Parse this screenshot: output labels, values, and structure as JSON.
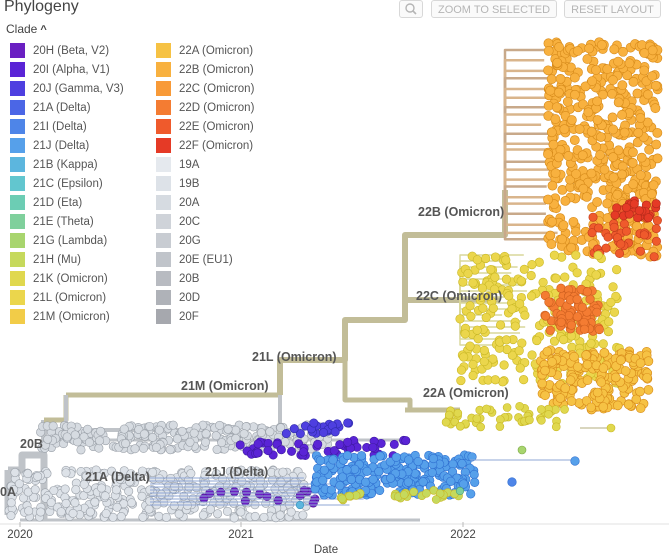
{
  "header": {
    "title": "Phylogeny",
    "zoom_icon": "magnifier-icon",
    "zoom_label": "ZOOM TO SELECTED",
    "reset_label": "RESET LAYOUT"
  },
  "legend": {
    "title": "Clade",
    "toggle_icon": "chevron-up-icon",
    "items": [
      {
        "label": "20H (Beta, V2)",
        "color": "#6a1fc2"
      },
      {
        "label": "20I (Alpha, V1)",
        "color": "#5a24d6"
      },
      {
        "label": "20J (Gamma, V3)",
        "color": "#4e3fe0"
      },
      {
        "label": "21A (Delta)",
        "color": "#4b66e6"
      },
      {
        "label": "21I (Delta)",
        "color": "#4e85e8"
      },
      {
        "label": "21J (Delta)",
        "color": "#56a0ea"
      },
      {
        "label": "21B (Kappa)",
        "color": "#5cb6de"
      },
      {
        "label": "21C (Epsilon)",
        "color": "#62c6cf"
      },
      {
        "label": "21D (Eta)",
        "color": "#6ccdb4"
      },
      {
        "label": "21E (Theta)",
        "color": "#7fd09c"
      },
      {
        "label": "21G (Lambda)",
        "color": "#a8d56e"
      },
      {
        "label": "21H (Mu)",
        "color": "#c6d95c"
      },
      {
        "label": "21K (Omicron)",
        "color": "#e0d84e"
      },
      {
        "label": "21L (Omicron)",
        "color": "#ebd64c"
      },
      {
        "label": "21M (Omicron)",
        "color": "#f2cc48"
      },
      {
        "label": "22A (Omicron)",
        "color": "#f6c244"
      },
      {
        "label": "22B (Omicron)",
        "color": "#f8b13f"
      },
      {
        "label": "22C (Omicron)",
        "color": "#f89a38"
      },
      {
        "label": "22D (Omicron)",
        "color": "#f47c32"
      },
      {
        "label": "22E (Omicron)",
        "color": "#ef5a2c"
      },
      {
        "label": "22F (Omicron)",
        "color": "#e53a26"
      },
      {
        "label": "19A",
        "color": "#e5e9ee"
      },
      {
        "label": "19B",
        "color": "#dde2e8"
      },
      {
        "label": "20A",
        "color": "#d6dbe1"
      },
      {
        "label": "20C",
        "color": "#cfd3d9"
      },
      {
        "label": "20G",
        "color": "#c8ccd2"
      },
      {
        "label": "20E (EU1)",
        "color": "#c0c4ca"
      },
      {
        "label": "20B",
        "color": "#b8bbc1"
      },
      {
        "label": "20D",
        "color": "#afb2b8"
      },
      {
        "label": "20F",
        "color": "#a6a8ae"
      }
    ]
  },
  "tree": {
    "clade_labels": [
      "22B (Omicron)",
      "22C (Omicron)",
      "21L (Omicron)",
      "21M (Omicron)",
      "22A (Omicron)",
      "20B",
      "21A (Delta)",
      "21J (Delta)",
      "0A"
    ],
    "axis": {
      "title": "Date",
      "ticks": [
        "2020",
        "2021",
        "2022"
      ]
    },
    "colors": {
      "branch_omicron": "#c2bd98",
      "branch_20b": "#bfc3c8",
      "node_stroke_orange": "#d68a1a",
      "node_stroke_yellow": "#c9b826",
      "node_stroke_grey": "#9aa0a8"
    }
  }
}
